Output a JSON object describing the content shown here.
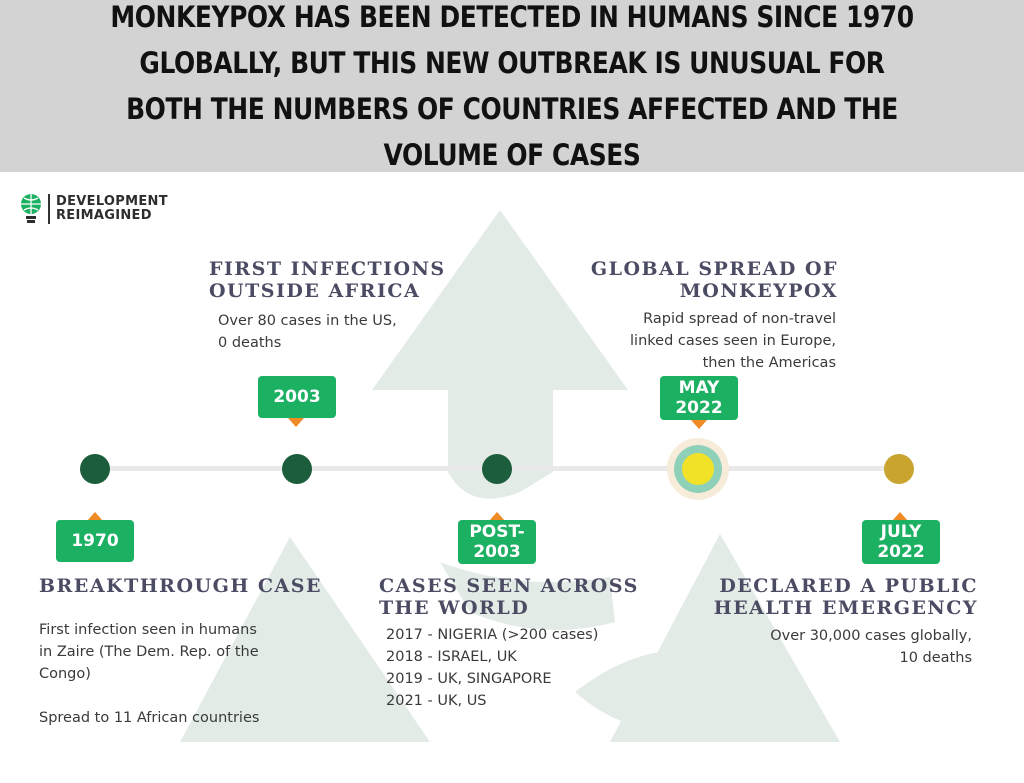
{
  "header": {
    "title": "Monkeypox has been detected in humans since 1970 globally, but this new outbreak is unusual for both the numbers of countries affected and the volume of cases"
  },
  "logo": {
    "line1": "DEVELOPMENT",
    "line2": "REIMAGINED"
  },
  "timeline": [
    {
      "label": "1970",
      "heading": "BREAKTHROUGH CASE",
      "body": "First infection seen in humans\nin Zaire (The Dem. Rep. of the\nCongo)\n\nSpread to 11 African countries"
    },
    {
      "label": "2003",
      "heading": "FIRST INFECTIONS\nOUTSIDE AFRICA",
      "body": "Over 80 cases in the US,\n0 deaths"
    },
    {
      "label": "POST-\n2003",
      "heading": "CASES SEEN ACROSS\nTHE WORLD",
      "body": "2017 - NIGERIA (>200 cases)\n2018 - ISRAEL, UK\n2019 - UK, SINGAPORE\n2021 - UK, US"
    },
    {
      "label": "MAY\n2022",
      "heading": "GLOBAL SPREAD OF\nMONKEYPOX",
      "body": "Rapid spread of non-travel\nlinked cases seen in Europe,\nthen the Americas"
    },
    {
      "label": "JULY\n2022",
      "heading": "DECLARED A PUBLIC\nHEALTH EMERGENCY",
      "body": "Over 30,000 cases globally,\n10 deaths"
    }
  ],
  "colors": {
    "header_bg": "#d3d3d3",
    "label_green": "#1bb062",
    "node_dark": "#1c5e3b",
    "node_gold": "#c9a52f",
    "pointer_orange": "#f08a24",
    "heading_text": "#4b4b63",
    "arrow_bg": "#e3ebe6"
  }
}
